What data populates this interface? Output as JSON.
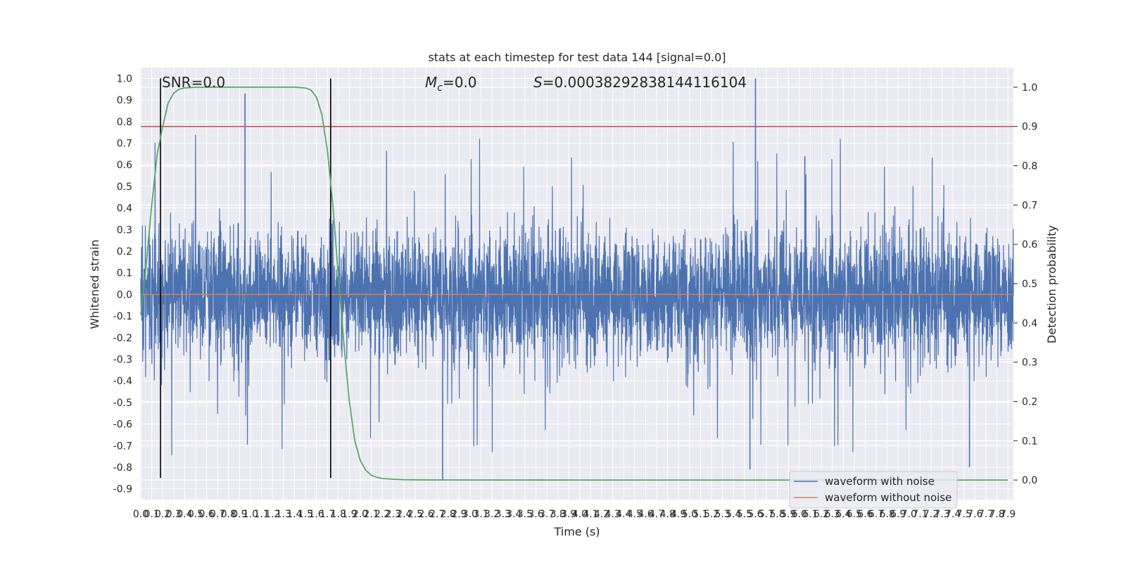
{
  "chart_data": {
    "type": "line",
    "title": "stats at each timestep for test data 144 [signal=0.0]",
    "xlabel": "Time (s)",
    "ylabel_left": "Whitened strain",
    "ylabel_right": "Detection probability",
    "xlim": [
      0.0,
      7.95
    ],
    "ylim_left": [
      -0.95,
      1.05
    ],
    "ylim_right": [
      -0.05,
      1.05
    ],
    "x_ticks": [
      "0.0",
      "0.1",
      "0.2",
      "0.3",
      "0.4",
      "0.5",
      "0.6",
      "0.7",
      "0.8",
      "0.9",
      "1.0",
      "1.1",
      "1.2",
      "1.3",
      "1.4",
      "1.5",
      "1.6",
      "1.7",
      "1.8",
      "1.9",
      "2.0",
      "2.1",
      "2.2",
      "2.3",
      "2.4",
      "2.5",
      "2.6",
      "2.7",
      "2.8",
      "2.9",
      "3.0",
      "3.1",
      "3.2",
      "3.3",
      "3.4",
      "3.5",
      "3.6",
      "3.7",
      "3.8",
      "3.9",
      "4.0",
      "4.1",
      "4.2",
      "4.3",
      "4.4",
      "4.5",
      "4.6",
      "4.7",
      "4.8",
      "4.9",
      "5.0",
      "5.1",
      "5.2",
      "5.3",
      "5.4",
      "5.5",
      "5.6",
      "5.7",
      "5.8",
      "5.9",
      "6.0",
      "6.1",
      "6.2",
      "6.3",
      "6.4",
      "6.5",
      "6.6",
      "6.7",
      "6.8",
      "6.9",
      "7.0",
      "7.1",
      "7.2",
      "7.3",
      "7.4",
      "7.5",
      "7.6",
      "7.7",
      "7.8",
      "7.9"
    ],
    "y_ticks_left": [
      "1.0",
      "0.9",
      "0.8",
      "0.7",
      "0.6",
      "0.5",
      "0.4",
      "0.3",
      "0.2",
      "0.1",
      "0.0",
      "-0.1",
      "-0.2",
      "-0.3",
      "-0.4",
      "-0.5",
      "-0.6",
      "-0.7",
      "-0.8",
      "-0.9"
    ],
    "y_ticks_right": [
      "1.0",
      "0.9",
      "0.8",
      "0.7",
      "0.6",
      "0.5",
      "0.4",
      "0.3",
      "0.2",
      "0.1",
      "0.0"
    ],
    "annotations": [
      {
        "prefix": "SNR",
        "text": "=0.0",
        "x": 0.18,
        "y": 1.0
      },
      {
        "prefix": "M",
        "sub": "c",
        "text": "=0.0",
        "x": 2.6,
        "y": 1.0
      },
      {
        "prefix": "S",
        "text": "=0.00038292838144116104",
        "x": 3.6,
        "y": 1.0
      }
    ],
    "series": [
      {
        "name": "waveform with noise",
        "color": "#4c72b0",
        "kind": "noise",
        "peaks": [
          {
            "x": 0.95,
            "y": 0.93
          },
          {
            "x": 5.6,
            "y": 1.0
          },
          {
            "x": 6.05,
            "y": 0.64
          }
        ],
        "troughs": [
          {
            "x": 2.75,
            "y": -0.86
          },
          {
            "x": 5.55,
            "y": -0.81
          },
          {
            "x": 7.55,
            "y": -0.8
          }
        ]
      },
      {
        "name": "waveform without noise",
        "color": "#dd8452",
        "kind": "flat",
        "value": 0.0
      },
      {
        "color": "#55a868",
        "axis": "right",
        "kind": "probability",
        "x": [
          0.0,
          0.05,
          0.1,
          0.15,
          0.2,
          0.25,
          0.3,
          0.35,
          0.4,
          0.5,
          0.6,
          0.8,
          1.0,
          1.2,
          1.4,
          1.5,
          1.55,
          1.6,
          1.65,
          1.7,
          1.75,
          1.8,
          1.85,
          1.9,
          1.95,
          2.0,
          2.05,
          2.1,
          2.15,
          2.2,
          2.3,
          2.4,
          2.5,
          2.6,
          2.8,
          3.0,
          4.0,
          5.0,
          6.0,
          7.0,
          7.9
        ],
        "values": [
          0.42,
          0.55,
          0.7,
          0.83,
          0.9,
          0.96,
          0.985,
          0.995,
          0.998,
          1.0,
          1.0,
          1.0,
          1.0,
          1.0,
          1.0,
          0.998,
          0.993,
          0.975,
          0.93,
          0.84,
          0.7,
          0.52,
          0.35,
          0.2,
          0.1,
          0.05,
          0.025,
          0.012,
          0.007,
          0.004,
          0.002,
          0.0008,
          0.0005,
          0.0003,
          0.0002,
          0.0001,
          0.0,
          0.0,
          0.0,
          0.0,
          0.0
        ]
      },
      {
        "color": "#c44e52",
        "axis": "right",
        "kind": "threshold",
        "value": 0.9
      },
      {
        "color": "#000000",
        "kind": "vline",
        "x": [
          0.18,
          1.73
        ],
        "ymin": -0.85,
        "ymax": 1.0
      }
    ],
    "legend": {
      "placement": "lower right",
      "entries": [
        "waveform with noise",
        "waveform without noise"
      ]
    },
    "grid": true,
    "background": "#eaeaf2"
  }
}
